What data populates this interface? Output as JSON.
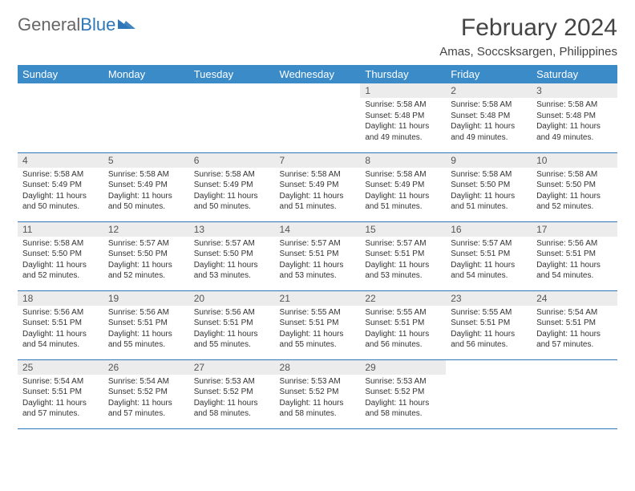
{
  "brand": {
    "part1": "General",
    "part2": "Blue"
  },
  "title": "February 2024",
  "location": "Amas, Soccsksargen, Philippines",
  "colors": {
    "header_bg": "#3b8bc9",
    "header_text": "#ffffff",
    "border": "#2d77b8",
    "daynum_bg": "#ececec",
    "text": "#333333",
    "brand_gray": "#666666",
    "brand_blue": "#2d77b8"
  },
  "day_headers": [
    "Sunday",
    "Monday",
    "Tuesday",
    "Wednesday",
    "Thursday",
    "Friday",
    "Saturday"
  ],
  "weeks": [
    [
      null,
      null,
      null,
      null,
      {
        "n": "1",
        "sr": "5:58 AM",
        "ss": "5:48 PM",
        "dl": "11 hours and 49 minutes."
      },
      {
        "n": "2",
        "sr": "5:58 AM",
        "ss": "5:48 PM",
        "dl": "11 hours and 49 minutes."
      },
      {
        "n": "3",
        "sr": "5:58 AM",
        "ss": "5:48 PM",
        "dl": "11 hours and 49 minutes."
      }
    ],
    [
      {
        "n": "4",
        "sr": "5:58 AM",
        "ss": "5:49 PM",
        "dl": "11 hours and 50 minutes."
      },
      {
        "n": "5",
        "sr": "5:58 AM",
        "ss": "5:49 PM",
        "dl": "11 hours and 50 minutes."
      },
      {
        "n": "6",
        "sr": "5:58 AM",
        "ss": "5:49 PM",
        "dl": "11 hours and 50 minutes."
      },
      {
        "n": "7",
        "sr": "5:58 AM",
        "ss": "5:49 PM",
        "dl": "11 hours and 51 minutes."
      },
      {
        "n": "8",
        "sr": "5:58 AM",
        "ss": "5:49 PM",
        "dl": "11 hours and 51 minutes."
      },
      {
        "n": "9",
        "sr": "5:58 AM",
        "ss": "5:50 PM",
        "dl": "11 hours and 51 minutes."
      },
      {
        "n": "10",
        "sr": "5:58 AM",
        "ss": "5:50 PM",
        "dl": "11 hours and 52 minutes."
      }
    ],
    [
      {
        "n": "11",
        "sr": "5:58 AM",
        "ss": "5:50 PM",
        "dl": "11 hours and 52 minutes."
      },
      {
        "n": "12",
        "sr": "5:57 AM",
        "ss": "5:50 PM",
        "dl": "11 hours and 52 minutes."
      },
      {
        "n": "13",
        "sr": "5:57 AM",
        "ss": "5:50 PM",
        "dl": "11 hours and 53 minutes."
      },
      {
        "n": "14",
        "sr": "5:57 AM",
        "ss": "5:51 PM",
        "dl": "11 hours and 53 minutes."
      },
      {
        "n": "15",
        "sr": "5:57 AM",
        "ss": "5:51 PM",
        "dl": "11 hours and 53 minutes."
      },
      {
        "n": "16",
        "sr": "5:57 AM",
        "ss": "5:51 PM",
        "dl": "11 hours and 54 minutes."
      },
      {
        "n": "17",
        "sr": "5:56 AM",
        "ss": "5:51 PM",
        "dl": "11 hours and 54 minutes."
      }
    ],
    [
      {
        "n": "18",
        "sr": "5:56 AM",
        "ss": "5:51 PM",
        "dl": "11 hours and 54 minutes."
      },
      {
        "n": "19",
        "sr": "5:56 AM",
        "ss": "5:51 PM",
        "dl": "11 hours and 55 minutes."
      },
      {
        "n": "20",
        "sr": "5:56 AM",
        "ss": "5:51 PM",
        "dl": "11 hours and 55 minutes."
      },
      {
        "n": "21",
        "sr": "5:55 AM",
        "ss": "5:51 PM",
        "dl": "11 hours and 55 minutes."
      },
      {
        "n": "22",
        "sr": "5:55 AM",
        "ss": "5:51 PM",
        "dl": "11 hours and 56 minutes."
      },
      {
        "n": "23",
        "sr": "5:55 AM",
        "ss": "5:51 PM",
        "dl": "11 hours and 56 minutes."
      },
      {
        "n": "24",
        "sr": "5:54 AM",
        "ss": "5:51 PM",
        "dl": "11 hours and 57 minutes."
      }
    ],
    [
      {
        "n": "25",
        "sr": "5:54 AM",
        "ss": "5:51 PM",
        "dl": "11 hours and 57 minutes."
      },
      {
        "n": "26",
        "sr": "5:54 AM",
        "ss": "5:52 PM",
        "dl": "11 hours and 57 minutes."
      },
      {
        "n": "27",
        "sr": "5:53 AM",
        "ss": "5:52 PM",
        "dl": "11 hours and 58 minutes."
      },
      {
        "n": "28",
        "sr": "5:53 AM",
        "ss": "5:52 PM",
        "dl": "11 hours and 58 minutes."
      },
      {
        "n": "29",
        "sr": "5:53 AM",
        "ss": "5:52 PM",
        "dl": "11 hours and 58 minutes."
      },
      null,
      null
    ]
  ],
  "labels": {
    "sunrise": "Sunrise: ",
    "sunset": "Sunset: ",
    "daylight": "Daylight: "
  }
}
